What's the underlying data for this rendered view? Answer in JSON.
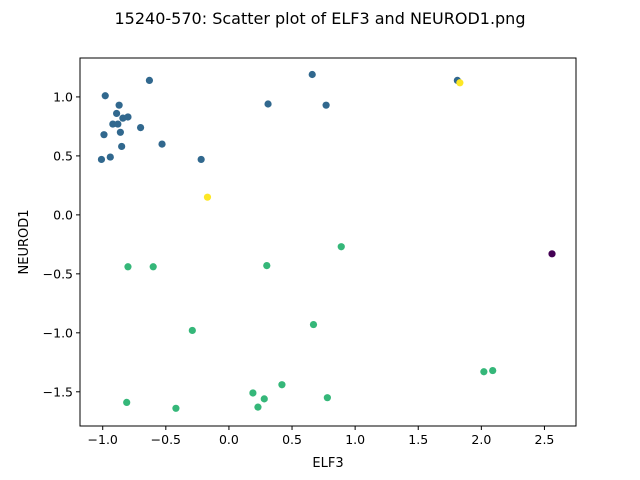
{
  "chart_data": {
    "type": "scatter",
    "title": "15240-570: Scatter plot of ELF3 and NEUROD1.png",
    "xlabel": "ELF3",
    "ylabel": "NEUROD1",
    "xlim": [
      -1.18,
      2.75
    ],
    "ylim": [
      -1.79,
      1.33
    ],
    "xticks": [
      -1.0,
      -0.5,
      0.0,
      0.5,
      1.0,
      1.5,
      2.0,
      2.5
    ],
    "xtick_labels": [
      "−1.0",
      "−0.5",
      "0.0",
      "0.5",
      "1.0",
      "1.5",
      "2.0",
      "2.5"
    ],
    "yticks": [
      -1.5,
      -1.0,
      -0.5,
      0.0,
      0.5,
      1.0
    ],
    "ytick_labels": [
      "−1.5",
      "−1.0",
      "−0.5",
      "0.0",
      "0.5",
      "1.0"
    ],
    "grid": false,
    "legend": "none",
    "colors": {
      "dark_blue": "#31688e",
      "green": "#35b779",
      "yellow": "#fde725",
      "purple": "#440154"
    },
    "points": [
      {
        "x": -0.63,
        "y": 1.14,
        "color": "#31688e"
      },
      {
        "x": -0.98,
        "y": 1.01,
        "color": "#31688e"
      },
      {
        "x": -0.87,
        "y": 0.93,
        "color": "#31688e"
      },
      {
        "x": -0.89,
        "y": 0.86,
        "color": "#31688e"
      },
      {
        "x": -0.84,
        "y": 0.82,
        "color": "#31688e"
      },
      {
        "x": -0.8,
        "y": 0.83,
        "color": "#31688e"
      },
      {
        "x": -0.92,
        "y": 0.77,
        "color": "#31688e"
      },
      {
        "x": -0.88,
        "y": 0.77,
        "color": "#31688e"
      },
      {
        "x": -0.7,
        "y": 0.74,
        "color": "#31688e"
      },
      {
        "x": -0.86,
        "y": 0.7,
        "color": "#31688e"
      },
      {
        "x": -0.99,
        "y": 0.68,
        "color": "#31688e"
      },
      {
        "x": -0.53,
        "y": 0.6,
        "color": "#31688e"
      },
      {
        "x": -0.85,
        "y": 0.58,
        "color": "#31688e"
      },
      {
        "x": -0.94,
        "y": 0.49,
        "color": "#31688e"
      },
      {
        "x": -1.01,
        "y": 0.47,
        "color": "#31688e"
      },
      {
        "x": -0.22,
        "y": 0.47,
        "color": "#31688e"
      },
      {
        "x": 0.66,
        "y": 1.19,
        "color": "#31688e"
      },
      {
        "x": 0.31,
        "y": 0.94,
        "color": "#31688e"
      },
      {
        "x": 0.77,
        "y": 0.93,
        "color": "#31688e"
      },
      {
        "x": 1.81,
        "y": 1.14,
        "color": "#31688e"
      },
      {
        "x": 1.83,
        "y": 1.12,
        "color": "#fde725"
      },
      {
        "x": -0.17,
        "y": 0.15,
        "color": "#fde725"
      },
      {
        "x": 2.56,
        "y": -0.33,
        "color": "#440154"
      },
      {
        "x": 0.89,
        "y": -0.27,
        "color": "#35b779"
      },
      {
        "x": -0.8,
        "y": -0.44,
        "color": "#35b779"
      },
      {
        "x": -0.6,
        "y": -0.44,
        "color": "#35b779"
      },
      {
        "x": 0.3,
        "y": -0.43,
        "color": "#35b779"
      },
      {
        "x": 0.67,
        "y": -0.93,
        "color": "#35b779"
      },
      {
        "x": -0.29,
        "y": -0.98,
        "color": "#35b779"
      },
      {
        "x": 2.02,
        "y": -1.33,
        "color": "#35b779"
      },
      {
        "x": 2.09,
        "y": -1.32,
        "color": "#35b779"
      },
      {
        "x": 0.42,
        "y": -1.44,
        "color": "#35b779"
      },
      {
        "x": 0.19,
        "y": -1.51,
        "color": "#35b779"
      },
      {
        "x": 0.78,
        "y": -1.55,
        "color": "#35b779"
      },
      {
        "x": 0.28,
        "y": -1.56,
        "color": "#35b779"
      },
      {
        "x": -0.81,
        "y": -1.59,
        "color": "#35b779"
      },
      {
        "x": 0.23,
        "y": -1.63,
        "color": "#35b779"
      },
      {
        "x": -0.42,
        "y": -1.64,
        "color": "#35b779"
      }
    ]
  }
}
